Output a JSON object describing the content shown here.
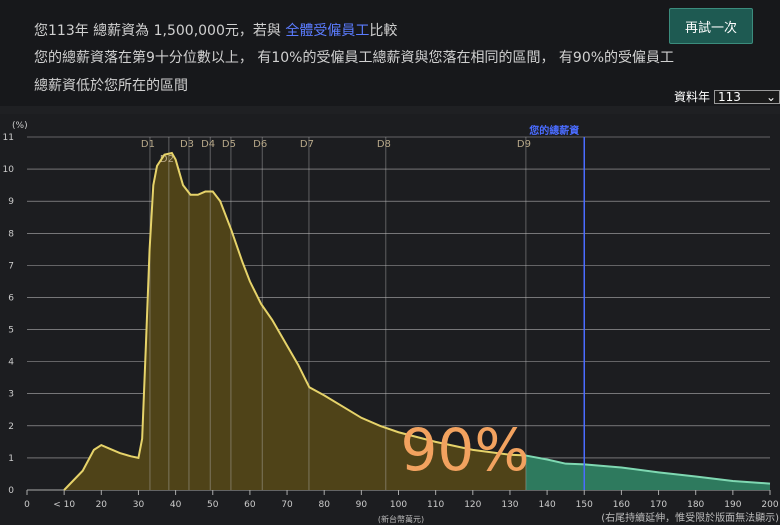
{
  "header": {
    "line1_pre": "您113年 總薪資為 1,500,000元，若與 ",
    "line1_link": "全體受僱員工",
    "line1_post": "比較",
    "line2": "您的總薪資落在第9十分位數以上， 有10%的受僱員工總薪資與您落在相同的區間， 有90%的受僱員工",
    "line3": "總薪資低於您所在的區間",
    "retry_label": "再試一次",
    "year_label": "資料年",
    "year_value": "113"
  },
  "chart_data": {
    "type": "area",
    "ylabel": "(%)",
    "xlabel": "(新台幣萬元)",
    "footnote": "(右尾持續延伸，惟受限於版面無法顯示)",
    "xlim": [
      0,
      200
    ],
    "ylim": [
      0,
      11
    ],
    "x_ticks": [
      0,
      "< 10",
      20,
      30,
      40,
      50,
      60,
      70,
      80,
      90,
      100,
      110,
      120,
      130,
      140,
      150,
      160,
      170,
      180,
      190,
      200
    ],
    "y_ticks": [
      0,
      1,
      2,
      3,
      4,
      5,
      6,
      7,
      8,
      9,
      10,
      11
    ],
    "grid": true,
    "x": [
      10,
      15,
      18,
      20,
      22,
      25,
      28,
      30,
      31,
      32,
      33,
      34,
      35,
      37,
      39,
      40,
      41,
      42,
      44,
      46,
      48,
      50,
      52,
      55,
      58,
      60,
      63,
      66,
      70,
      73,
      76,
      80,
      85,
      90,
      95,
      100,
      110,
      120,
      130,
      134,
      140,
      145,
      150,
      160,
      170,
      180,
      190,
      200
    ],
    "y": [
      0,
      0.6,
      1.25,
      1.4,
      1.3,
      1.15,
      1.05,
      1.0,
      1.6,
      4.5,
      7.5,
      9.5,
      10.1,
      10.45,
      10.5,
      10.3,
      9.9,
      9.5,
      9.2,
      9.2,
      9.3,
      9.3,
      9.0,
      8.1,
      7.1,
      6.5,
      5.8,
      5.3,
      4.5,
      3.9,
      3.2,
      2.95,
      2.6,
      2.25,
      2.0,
      1.8,
      1.5,
      1.25,
      1.1,
      1.08,
      0.95,
      0.82,
      0.8,
      0.7,
      0.55,
      0.42,
      0.28,
      0.2
    ],
    "deciles": [
      {
        "label": "D1",
        "x": 33.1
      },
      {
        "label": "D2",
        "x": 38.2
      },
      {
        "label": "D3",
        "x": 43.6
      },
      {
        "label": "D4",
        "x": 49.3
      },
      {
        "label": "D5",
        "x": 54.9
      },
      {
        "label": "D6",
        "x": 63.3
      },
      {
        "label": "D7",
        "x": 75.9
      },
      {
        "label": "D8",
        "x": 96.6
      },
      {
        "label": "D9",
        "x": 134.3
      }
    ],
    "user_marker": {
      "label": "您的總薪資",
      "x": 150
    },
    "big_label": "90%",
    "colors": {
      "below": "#4f4318",
      "below_line": "#e6d36a",
      "above": "#2e7a5e",
      "above_line": "#7fd8b2",
      "user": "#4a6cff",
      "big_label": "#f2a25f"
    }
  }
}
